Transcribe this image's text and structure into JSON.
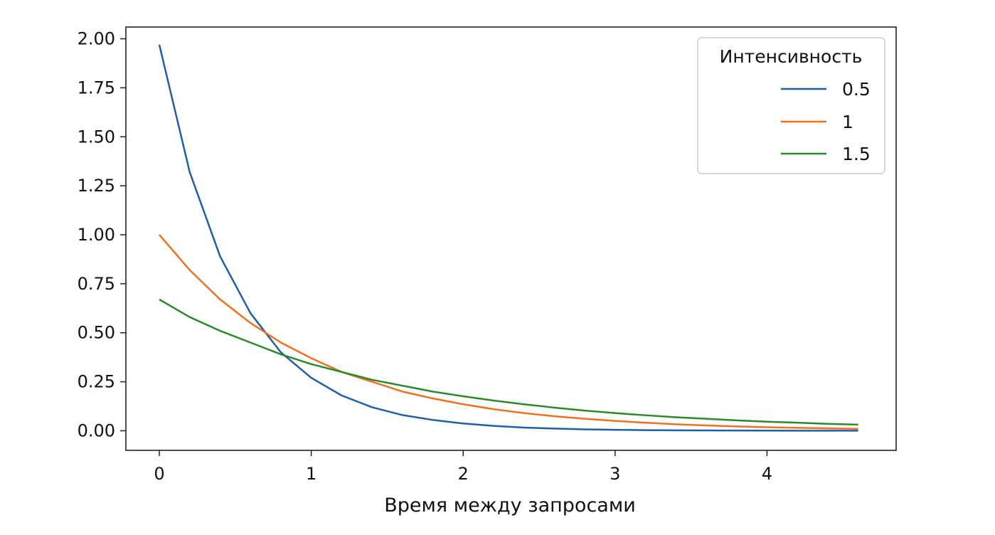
{
  "chart_data": {
    "type": "line",
    "title": "",
    "xlabel": "Время между запросами",
    "ylabel": "",
    "xlim": [
      -0.22,
      4.85
    ],
    "ylim": [
      -0.1,
      2.06
    ],
    "x_ticks": [
      0,
      1,
      2,
      3,
      4
    ],
    "x_tick_labels": [
      "0",
      "1",
      "2",
      "3",
      "4"
    ],
    "y_ticks": [
      0,
      0.25,
      0.5,
      0.75,
      1,
      1.25,
      1.5,
      1.75,
      2
    ],
    "y_tick_labels": [
      "0.00",
      "0.25",
      "0.50",
      "0.75",
      "1.00",
      "1.25",
      "1.50",
      "1.75",
      "2.00"
    ],
    "grid": false,
    "legend": {
      "title": "Интенсивность",
      "placement": "top-right"
    },
    "x": [
      0,
      0.2,
      0.4,
      0.6,
      0.8,
      1.0,
      1.2,
      1.4,
      1.6,
      1.8,
      2.0,
      2.2,
      2.4,
      2.6,
      2.8,
      3.0,
      3.2,
      3.4,
      3.6,
      3.8,
      4.0,
      4.2,
      4.4,
      4.6
    ],
    "series": [
      {
        "name": "0.5",
        "color": "#1f5fa8",
        "values": [
          1.97,
          1.32,
          0.89,
          0.6,
          0.4,
          0.27,
          0.18,
          0.12,
          0.08,
          0.055,
          0.037,
          0.025,
          0.016,
          0.011,
          0.007,
          0.005,
          0.003,
          0.002,
          0.0015,
          0.001,
          0.0007,
          0.0004,
          0.0003,
          0.0002
        ]
      },
      {
        "name": "1",
        "color": "#f07020",
        "values": [
          1.0,
          0.82,
          0.67,
          0.55,
          0.45,
          0.37,
          0.3,
          0.25,
          0.2,
          0.165,
          0.135,
          0.11,
          0.09,
          0.074,
          0.061,
          0.05,
          0.041,
          0.033,
          0.027,
          0.022,
          0.018,
          0.015,
          0.012,
          0.01
        ]
      },
      {
        "name": "1.5",
        "color": "#2a8a2a",
        "values": [
          0.67,
          0.58,
          0.51,
          0.45,
          0.39,
          0.34,
          0.3,
          0.26,
          0.23,
          0.2,
          0.176,
          0.154,
          0.135,
          0.118,
          0.103,
          0.09,
          0.079,
          0.069,
          0.061,
          0.053,
          0.046,
          0.041,
          0.035,
          0.031
        ]
      }
    ]
  }
}
